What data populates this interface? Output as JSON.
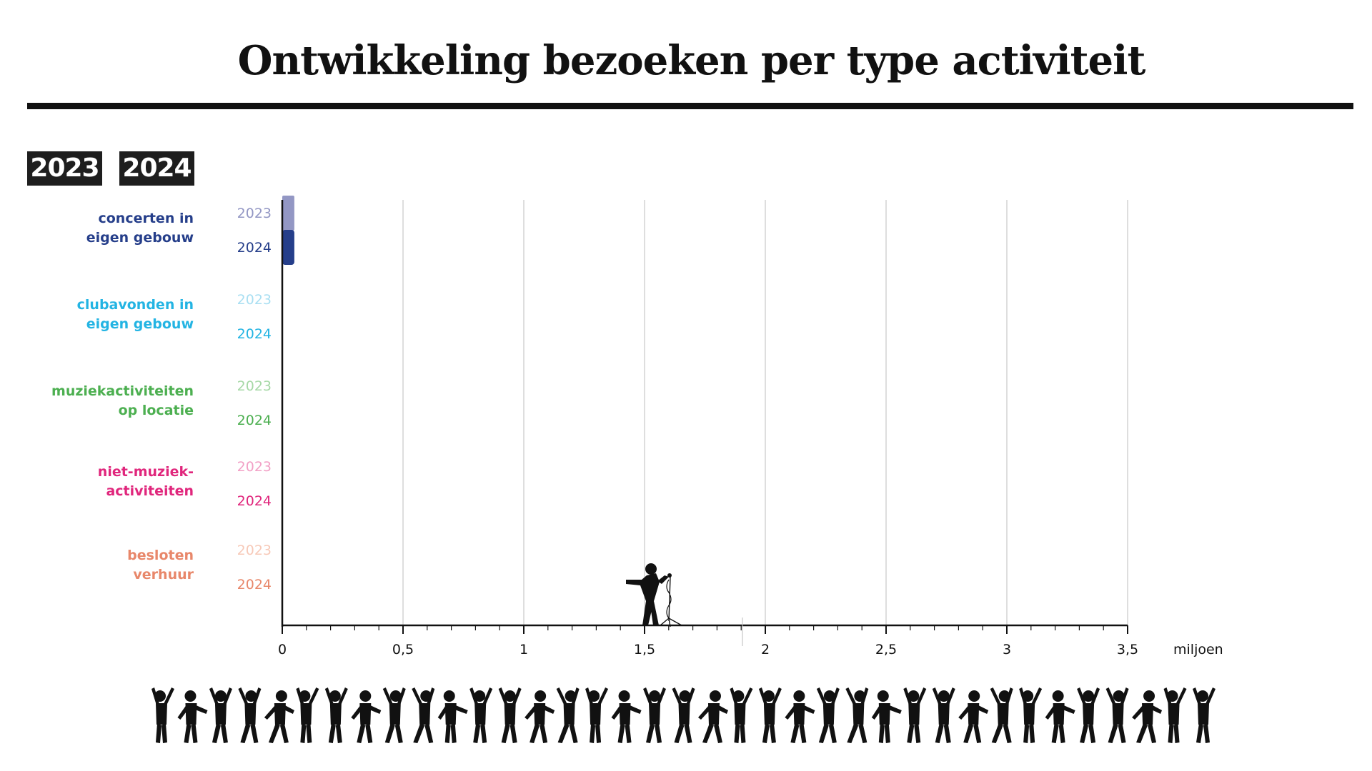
{
  "title": "Ontwikkeling bezoeken per type activiteit",
  "legend_chips": [
    "2023",
    "2024"
  ],
  "chart_data": {
    "type": "bar",
    "orientation": "horizontal",
    "title": "Ontwikkeling bezoeken per type activiteit",
    "xlabel": "miljoen",
    "xlim": [
      0,
      3.5
    ],
    "xticks": [
      {
        "value": 0,
        "label": "0"
      },
      {
        "value": 0.5,
        "label": "0,5"
      },
      {
        "value": 1,
        "label": "1"
      },
      {
        "value": 1.5,
        "label": "1,5"
      },
      {
        "value": 2,
        "label": "2"
      },
      {
        "value": 2.5,
        "label": "2,5"
      },
      {
        "value": 3,
        "label": "3"
      },
      {
        "value": 3.5,
        "label": "3,5"
      }
    ],
    "grid": true,
    "categories": [
      {
        "label_lines": [
          "concerten in",
          "eigen gebouw"
        ],
        "color_2023": "#9397c4",
        "color_2024": "#253e8a",
        "values": {
          "2023": 0.05,
          "2024": 0.05
        }
      },
      {
        "label_lines": [
          "clubavonden in",
          "eigen gebouw"
        ],
        "color_2023": "#a9dff2",
        "color_2024": "#23b4e3",
        "values": {
          "2023": 0,
          "2024": 0
        }
      },
      {
        "label_lines": [
          "muziekactiviteiten",
          "op locatie"
        ],
        "color_2023": "#a6d8a6",
        "color_2024": "#4caf50",
        "values": {
          "2023": 0,
          "2024": 0
        }
      },
      {
        "label_lines": [
          "niet-muziek-",
          "activiteiten"
        ],
        "color_2023": "#f2a0c6",
        "color_2024": "#e0267c",
        "values": {
          "2023": 0,
          "2024": 0
        }
      },
      {
        "label_lines": [
          "besloten",
          "verhuur"
        ],
        "color_2023": "#f7c9b8",
        "color_2024": "#e8876a",
        "values": {
          "2023": 0,
          "2024": 0
        }
      }
    ],
    "years": [
      "2023",
      "2024"
    ]
  },
  "decorations": {
    "singer": "singer-with-microphone-icon",
    "crowd": "dancing-people-silhouettes",
    "crowd_count": 37
  }
}
